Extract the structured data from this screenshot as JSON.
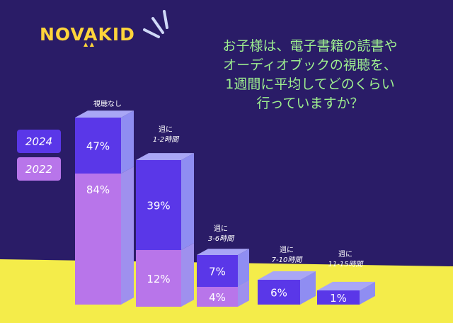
{
  "brand": {
    "logo_text": "NOVAKID",
    "logo_color": "#ffd43b"
  },
  "question": [
    "お子様は、電子書籍の読書や",
    "オーディオブックの視聴を、",
    "1週間に平均してどのくらい",
    "行っていますか？"
  ],
  "colors": {
    "background": "#2a1c67",
    "floor": "#f4ec4a",
    "series_2024": "#5a37e8",
    "series_2022": "#b875ea",
    "bar_side_2024": "#8f8df2",
    "bar_side_2022": "#9f90ee",
    "question_text": "#9ef08f"
  },
  "chart_data": {
    "type": "bar",
    "categories": [
      "視聴なし",
      "週に\n1-2時間",
      "週に\n3-6時間",
      "週に\n7-10時間",
      "週に\n11-15時間"
    ],
    "series": [
      {
        "name": "2024",
        "values": [
          47,
          39,
          7,
          6,
          1
        ],
        "labels": [
          "47%",
          "39%",
          "7%",
          "6%",
          "1%"
        ]
      },
      {
        "name": "2022",
        "values": [
          84,
          12,
          4,
          null,
          null
        ],
        "labels": [
          "84%",
          "12%",
          "4%",
          "",
          ""
        ]
      }
    ],
    "legend": [
      "2024",
      "2022"
    ],
    "legend_position": "left"
  }
}
